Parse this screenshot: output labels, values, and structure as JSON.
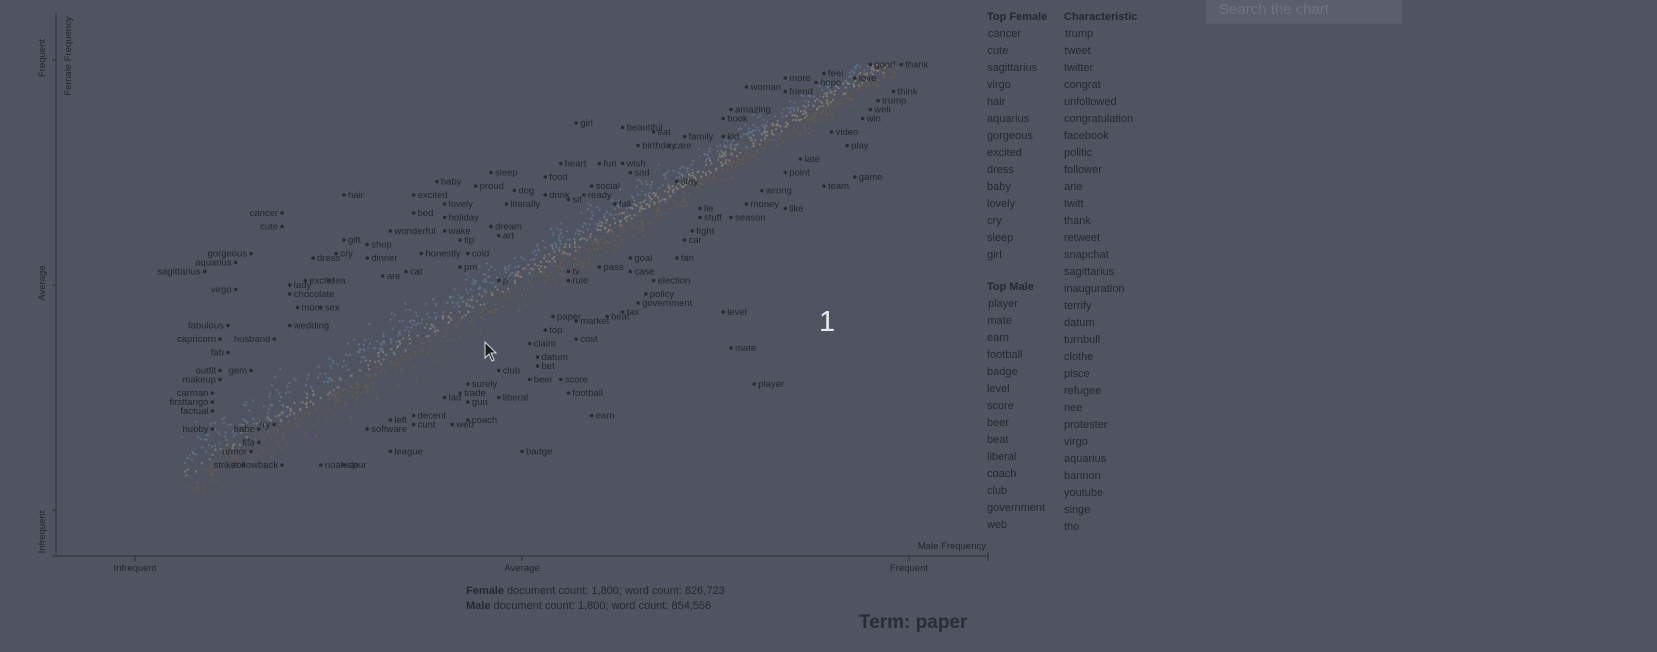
{
  "search": {
    "placeholder": "Search the chart"
  },
  "chart_data": {
    "type": "scatter",
    "xlabel": "Male Frequency",
    "ylabel": "Female Frequency",
    "x_ticks": [
      "Infrequent",
      "Average",
      "Frequent"
    ],
    "y_ticks": [
      "Infrequent",
      "Average",
      "Frequent"
    ],
    "xlim": [
      0,
      1
    ],
    "ylim": [
      0,
      1
    ],
    "labeled_points": [
      {
        "t": "thank",
        "x": 0.99,
        "y": 0.99
      },
      {
        "t": "good",
        "x": 0.95,
        "y": 0.99
      },
      {
        "t": "love",
        "x": 0.93,
        "y": 0.96
      },
      {
        "t": "feel",
        "x": 0.89,
        "y": 0.97
      },
      {
        "t": "hope",
        "x": 0.88,
        "y": 0.95
      },
      {
        "t": "more",
        "x": 0.84,
        "y": 0.96
      },
      {
        "t": "think",
        "x": 0.98,
        "y": 0.93
      },
      {
        "t": "trump",
        "x": 0.96,
        "y": 0.91
      },
      {
        "t": "well",
        "x": 0.95,
        "y": 0.89
      },
      {
        "t": "win",
        "x": 0.94,
        "y": 0.87
      },
      {
        "t": "friend",
        "x": 0.84,
        "y": 0.93
      },
      {
        "t": "woman",
        "x": 0.79,
        "y": 0.94
      },
      {
        "t": "amazing",
        "x": 0.77,
        "y": 0.89
      },
      {
        "t": "book",
        "x": 0.76,
        "y": 0.87
      },
      {
        "t": "kid",
        "x": 0.76,
        "y": 0.83
      },
      {
        "t": "video",
        "x": 0.9,
        "y": 0.84
      },
      {
        "t": "play",
        "x": 0.92,
        "y": 0.81
      },
      {
        "t": "girl",
        "x": 0.57,
        "y": 0.86
      },
      {
        "t": "beautiful",
        "x": 0.63,
        "y": 0.85
      },
      {
        "t": "eat",
        "x": 0.67,
        "y": 0.84
      },
      {
        "t": "family",
        "x": 0.71,
        "y": 0.83
      },
      {
        "t": "birthday",
        "x": 0.65,
        "y": 0.81
      },
      {
        "t": "care",
        "x": 0.69,
        "y": 0.81
      },
      {
        "t": "late",
        "x": 0.86,
        "y": 0.78
      },
      {
        "t": "point",
        "x": 0.84,
        "y": 0.75
      },
      {
        "t": "game",
        "x": 0.93,
        "y": 0.74
      },
      {
        "t": "team",
        "x": 0.89,
        "y": 0.72
      },
      {
        "t": "sleep",
        "x": 0.46,
        "y": 0.75
      },
      {
        "t": "heart",
        "x": 0.55,
        "y": 0.77
      },
      {
        "t": "fun",
        "x": 0.6,
        "y": 0.77
      },
      {
        "t": "wish",
        "x": 0.63,
        "y": 0.77
      },
      {
        "t": "sad",
        "x": 0.64,
        "y": 0.75
      },
      {
        "t": "stay",
        "x": 0.7,
        "y": 0.73
      },
      {
        "t": "food",
        "x": 0.53,
        "y": 0.74
      },
      {
        "t": "baby",
        "x": 0.39,
        "y": 0.73
      },
      {
        "t": "proud",
        "x": 0.44,
        "y": 0.72
      },
      {
        "t": "dog",
        "x": 0.49,
        "y": 0.71
      },
      {
        "t": "social",
        "x": 0.59,
        "y": 0.72
      },
      {
        "t": "ready",
        "x": 0.58,
        "y": 0.7
      },
      {
        "t": "drink",
        "x": 0.53,
        "y": 0.7
      },
      {
        "t": "sit",
        "x": 0.56,
        "y": 0.69
      },
      {
        "t": "fall",
        "x": 0.62,
        "y": 0.68
      },
      {
        "t": "wrong",
        "x": 0.81,
        "y": 0.71
      },
      {
        "t": "money",
        "x": 0.79,
        "y": 0.68
      },
      {
        "t": "like",
        "x": 0.84,
        "y": 0.67
      },
      {
        "t": "hair",
        "x": 0.27,
        "y": 0.7
      },
      {
        "t": "excited",
        "x": 0.36,
        "y": 0.7
      },
      {
        "t": "lovely",
        "x": 0.4,
        "y": 0.68
      },
      {
        "t": "literally",
        "x": 0.48,
        "y": 0.68
      },
      {
        "t": "lie",
        "x": 0.73,
        "y": 0.67
      },
      {
        "t": "stuff",
        "x": 0.73,
        "y": 0.65
      },
      {
        "t": "season",
        "x": 0.77,
        "y": 0.65
      },
      {
        "t": "cancer",
        "x": 0.19,
        "y": 0.66
      },
      {
        "t": "cute",
        "x": 0.19,
        "y": 0.63
      },
      {
        "t": "bed",
        "x": 0.36,
        "y": 0.66
      },
      {
        "t": "holiday",
        "x": 0.4,
        "y": 0.65
      },
      {
        "t": "dream",
        "x": 0.46,
        "y": 0.63
      },
      {
        "t": "fight",
        "x": 0.72,
        "y": 0.62
      },
      {
        "t": "wonderful",
        "x": 0.33,
        "y": 0.62
      },
      {
        "t": "wake",
        "x": 0.4,
        "y": 0.62
      },
      {
        "t": "art",
        "x": 0.47,
        "y": 0.61
      },
      {
        "t": "car",
        "x": 0.71,
        "y": 0.6
      },
      {
        "t": "tip",
        "x": 0.42,
        "y": 0.6
      },
      {
        "t": "gift",
        "x": 0.27,
        "y": 0.6
      },
      {
        "t": "shop",
        "x": 0.3,
        "y": 0.59
      },
      {
        "t": "honestly",
        "x": 0.37,
        "y": 0.57
      },
      {
        "t": "cold",
        "x": 0.43,
        "y": 0.57
      },
      {
        "t": "gorgeous",
        "x": 0.15,
        "y": 0.57
      },
      {
        "t": "dress",
        "x": 0.23,
        "y": 0.56
      },
      {
        "t": "cry",
        "x": 0.26,
        "y": 0.57
      },
      {
        "t": "dinner",
        "x": 0.3,
        "y": 0.56
      },
      {
        "t": "goal",
        "x": 0.64,
        "y": 0.56
      },
      {
        "t": "fan",
        "x": 0.7,
        "y": 0.56
      },
      {
        "t": "aquarius",
        "x": 0.13,
        "y": 0.55
      },
      {
        "t": "pm",
        "x": 0.42,
        "y": 0.54
      },
      {
        "t": "pass",
        "x": 0.6,
        "y": 0.54
      },
      {
        "t": "case",
        "x": 0.64,
        "y": 0.53
      },
      {
        "t": "tv",
        "x": 0.56,
        "y": 0.53
      },
      {
        "t": "sagittarius",
        "x": 0.09,
        "y": 0.53
      },
      {
        "t": "cat",
        "x": 0.35,
        "y": 0.53
      },
      {
        "t": "are",
        "x": 0.32,
        "y": 0.52
      },
      {
        "t": "excite",
        "x": 0.22,
        "y": 0.51
      },
      {
        "t": "tea",
        "x": 0.25,
        "y": 0.51
      },
      {
        "t": "p",
        "x": 0.47,
        "y": 0.51
      },
      {
        "t": "rule",
        "x": 0.56,
        "y": 0.51
      },
      {
        "t": "election",
        "x": 0.67,
        "y": 0.51
      },
      {
        "t": "lady",
        "x": 0.2,
        "y": 0.5
      },
      {
        "t": "virgo",
        "x": 0.13,
        "y": 0.49
      },
      {
        "t": "chocolate",
        "x": 0.2,
        "y": 0.48
      },
      {
        "t": "policy",
        "x": 0.66,
        "y": 0.48
      },
      {
        "t": "government",
        "x": 0.65,
        "y": 0.46
      },
      {
        "t": "mom",
        "x": 0.21,
        "y": 0.45
      },
      {
        "t": "sex",
        "x": 0.24,
        "y": 0.45
      },
      {
        "t": "tax",
        "x": 0.63,
        "y": 0.44
      },
      {
        "t": "level",
        "x": 0.76,
        "y": 0.44
      },
      {
        "t": "paper",
        "x": 0.54,
        "y": 0.43
      },
      {
        "t": "beat",
        "x": 0.61,
        "y": 0.43
      },
      {
        "t": "market",
        "x": 0.57,
        "y": 0.42
      },
      {
        "t": "fabulous",
        "x": 0.12,
        "y": 0.41
      },
      {
        "t": "wedding",
        "x": 0.2,
        "y": 0.41
      },
      {
        "t": "top",
        "x": 0.53,
        "y": 0.4
      },
      {
        "t": "capricorn",
        "x": 0.11,
        "y": 0.38
      },
      {
        "t": "husband",
        "x": 0.18,
        "y": 0.38
      },
      {
        "t": "cost",
        "x": 0.57,
        "y": 0.38
      },
      {
        "t": "claim",
        "x": 0.51,
        "y": 0.37
      },
      {
        "t": "mate",
        "x": 0.77,
        "y": 0.36
      },
      {
        "t": "fab",
        "x": 0.12,
        "y": 0.35
      },
      {
        "t": "datum",
        "x": 0.52,
        "y": 0.34
      },
      {
        "t": "bet",
        "x": 0.52,
        "y": 0.32
      },
      {
        "t": "outfit",
        "x": 0.11,
        "y": 0.31
      },
      {
        "t": "gem",
        "x": 0.15,
        "y": 0.31
      },
      {
        "t": "club",
        "x": 0.47,
        "y": 0.31
      },
      {
        "t": "makeup",
        "x": 0.11,
        "y": 0.29
      },
      {
        "t": "player",
        "x": 0.8,
        "y": 0.28
      },
      {
        "t": "beer",
        "x": 0.51,
        "y": 0.29
      },
      {
        "t": "score",
        "x": 0.55,
        "y": 0.29
      },
      {
        "t": "surely",
        "x": 0.43,
        "y": 0.28
      },
      {
        "t": "carman",
        "x": 0.1,
        "y": 0.26
      },
      {
        "t": "trade",
        "x": 0.42,
        "y": 0.26
      },
      {
        "t": "football",
        "x": 0.56,
        "y": 0.26
      },
      {
        "t": "lad",
        "x": 0.4,
        "y": 0.25
      },
      {
        "t": "gun",
        "x": 0.43,
        "y": 0.24
      },
      {
        "t": "liberal",
        "x": 0.47,
        "y": 0.25
      },
      {
        "t": "firsttango",
        "x": 0.1,
        "y": 0.24
      },
      {
        "t": "factual",
        "x": 0.1,
        "y": 0.22
      },
      {
        "t": "decent",
        "x": 0.36,
        "y": 0.21
      },
      {
        "t": "left",
        "x": 0.33,
        "y": 0.2
      },
      {
        "t": "coach",
        "x": 0.43,
        "y": 0.2
      },
      {
        "t": "earn",
        "x": 0.59,
        "y": 0.21
      },
      {
        "t": "fry",
        "x": 0.18,
        "y": 0.19
      },
      {
        "t": "cunt",
        "x": 0.36,
        "y": 0.19
      },
      {
        "t": "web",
        "x": 0.41,
        "y": 0.19
      },
      {
        "t": "hubby",
        "x": 0.1,
        "y": 0.18
      },
      {
        "t": "babe",
        "x": 0.16,
        "y": 0.18
      },
      {
        "t": "software",
        "x": 0.3,
        "y": 0.18
      },
      {
        "t": "fifa",
        "x": 0.16,
        "y": 0.15
      },
      {
        "t": "armor",
        "x": 0.15,
        "y": 0.13
      },
      {
        "t": "league",
        "x": 0.33,
        "y": 0.13
      },
      {
        "t": "badge",
        "x": 0.5,
        "y": 0.13
      },
      {
        "t": "striker",
        "x": 0.14,
        "y": 0.1
      },
      {
        "t": "followback",
        "x": 0.19,
        "y": 0.1
      },
      {
        "t": "spur",
        "x": 0.27,
        "y": 0.1
      },
      {
        "t": "noahide",
        "x": 0.24,
        "y": 0.1
      }
    ],
    "top_female": [
      "cancer",
      "cute",
      "sagittarius",
      "virgo",
      "hair",
      "aquarius",
      "gorgeous",
      "excited",
      "dress",
      "baby",
      "lovely",
      "cry",
      "sleep",
      "girl"
    ],
    "top_male": [
      "player",
      "mate",
      "earn",
      "football",
      "badge",
      "level",
      "score",
      "beer",
      "beat",
      "liberal",
      "coach",
      "club",
      "government",
      "web"
    ],
    "characteristic": [
      "trump",
      "tweet",
      "twitter",
      "congrat",
      "unfollowed",
      "congratulation",
      "facebook",
      "politic",
      "follower",
      "arie",
      "twitt",
      "thank",
      "retweet",
      "snapchat",
      "sagittarius",
      "inauguration",
      "terrify",
      "datum",
      "turnbull",
      "clothe",
      "pisce",
      "refugee",
      "nee",
      "protester",
      "virgo",
      "aquarius",
      "bannon",
      "youtube",
      "singe",
      "tho"
    ],
    "colors": {
      "female_dots": "#5d6f8a",
      "male_dots": "#6b5a4c",
      "neutral_dots": "#7f7a6e",
      "labeled_dot": "#2a2c31"
    }
  },
  "headers": {
    "top_female": "Top Female",
    "top_male": "Top Male",
    "characteristic": "Characteristic"
  },
  "counts": {
    "female_label": "Female",
    "female_text": " document count: 1,800; word count: 826,723",
    "male_label": "Male",
    "male_text": " document count: 1,800; word count: 854,556"
  },
  "term": "Term: paper",
  "badge": "1"
}
